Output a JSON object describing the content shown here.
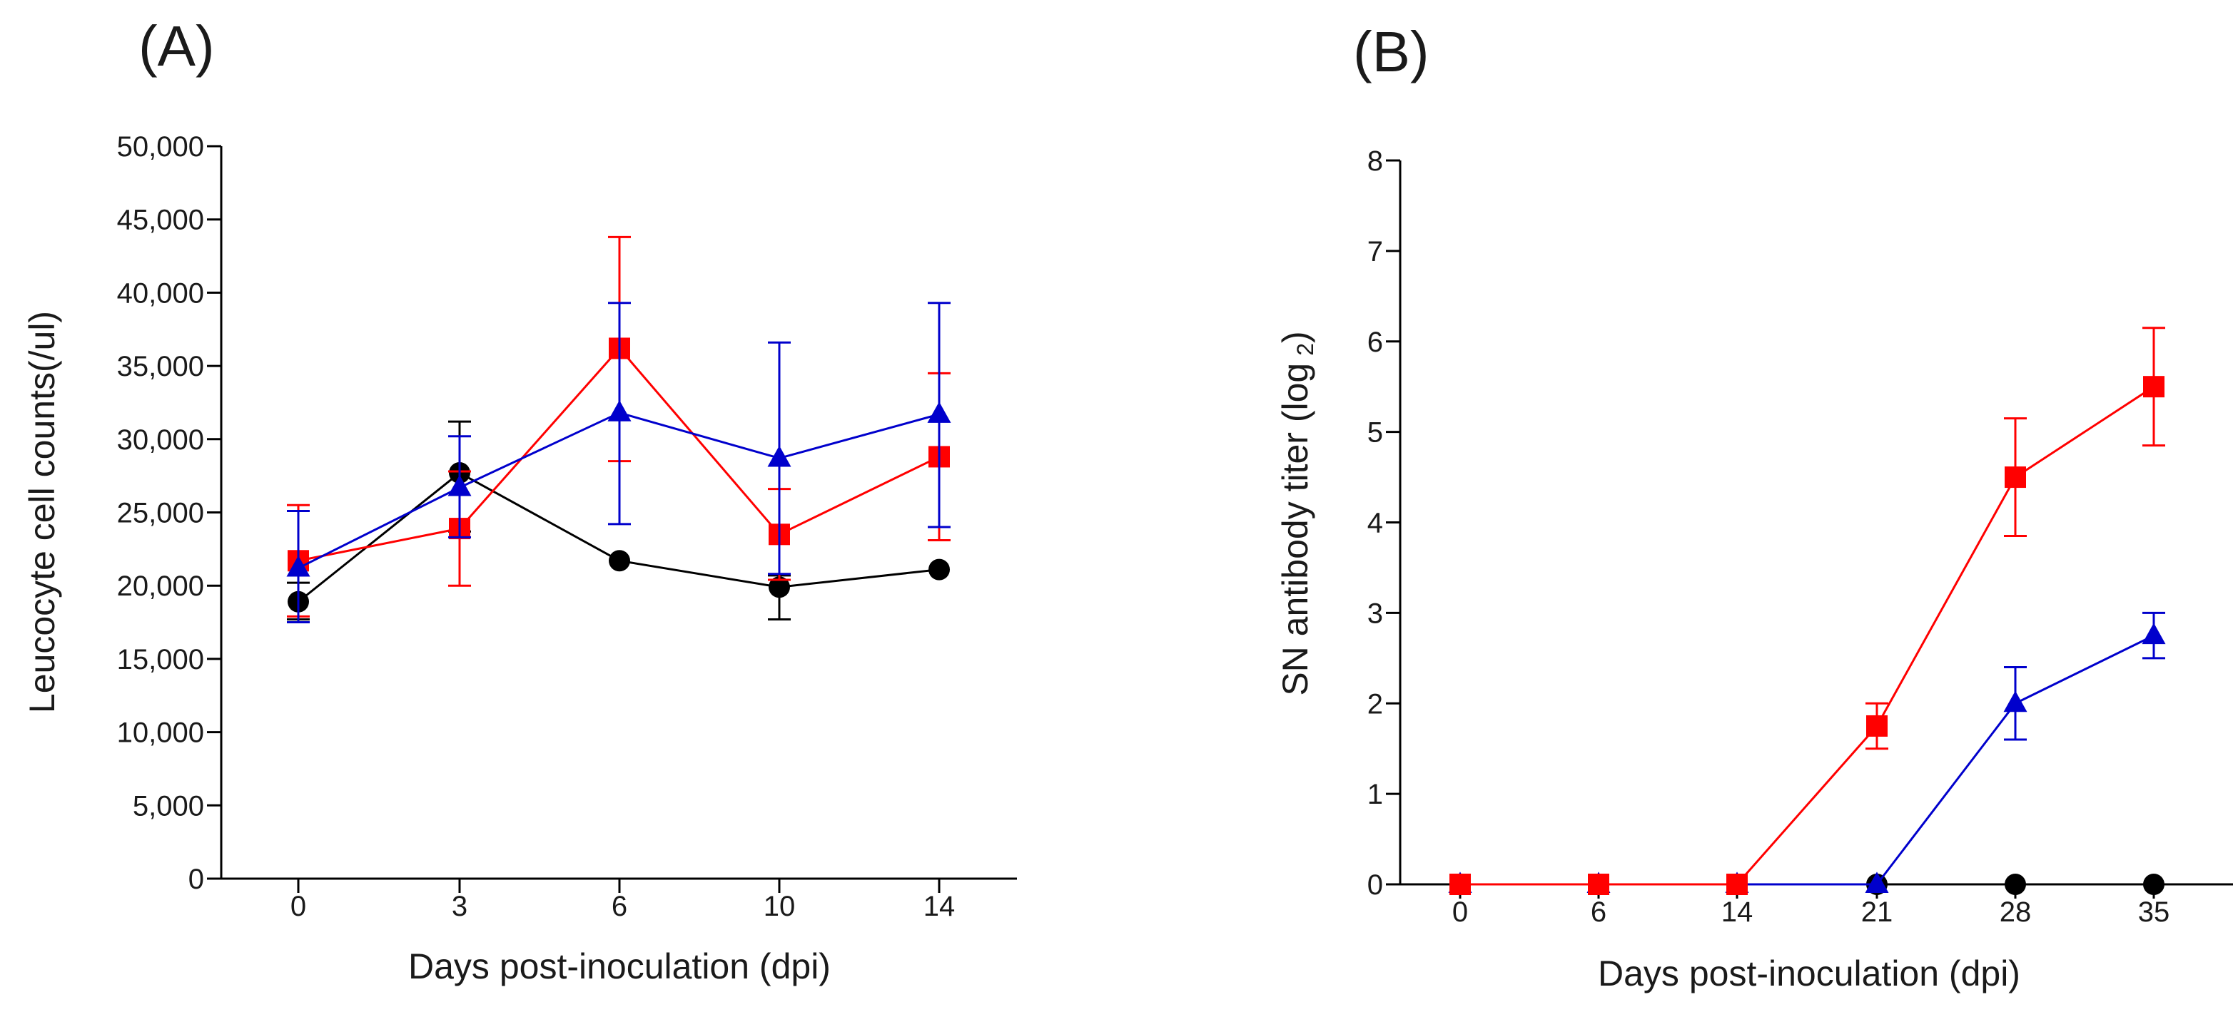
{
  "chart_data": [
    {
      "type": "line",
      "panel_label": "(A)",
      "xlabel": "Days post-inoculation (dpi)",
      "ylabel": "Leucocyte cell counts(/ul)",
      "categories": [
        "0",
        "3",
        "6",
        "10",
        "14"
      ],
      "ylim": [
        0,
        50000
      ],
      "yticks": [
        0,
        5000,
        10000,
        15000,
        20000,
        25000,
        30000,
        35000,
        40000,
        45000,
        50000
      ],
      "ytick_labels": [
        "0",
        "5,000",
        "10,000",
        "15,000",
        "20,000",
        "25,000",
        "30,000",
        "35,000",
        "40,000",
        "45,000",
        "50,000"
      ],
      "series": [
        {
          "name": "black circles",
          "color": "#000000",
          "marker": "circle",
          "values": [
            18900,
            27700,
            21700,
            19900,
            21100
          ],
          "err_upper": [
            20200,
            31200,
            21700,
            20700,
            21100
          ],
          "err_lower": [
            17700,
            23700,
            21700,
            17700,
            21100
          ]
        },
        {
          "name": "red squares",
          "color": "#ff0000",
          "marker": "square",
          "values": [
            21700,
            23900,
            36200,
            23500,
            28800
          ],
          "err_upper": [
            25500,
            27800,
            43800,
            26600,
            34500
          ],
          "err_lower": [
            17900,
            20000,
            28500,
            20400,
            23100
          ]
        },
        {
          "name": "blue triangles",
          "color": "#0000cc",
          "marker": "triangle",
          "values": [
            21200,
            26700,
            31800,
            28700,
            31700
          ],
          "err_upper": [
            25100,
            30200,
            39300,
            36600,
            39300
          ],
          "err_lower": [
            17500,
            23300,
            24200,
            20800,
            24000
          ]
        }
      ]
    },
    {
      "type": "line",
      "panel_label": "(B)",
      "xlabel": "Days post-inoculation (dpi)",
      "ylabel": "SN antibody titer (log",
      "ylabel_sub": "2",
      "ylabel_close": ")",
      "categories": [
        "0",
        "6",
        "14",
        "21",
        "28",
        "35"
      ],
      "ylim": [
        0,
        8
      ],
      "yticks": [
        0,
        1,
        2,
        3,
        4,
        5,
        6,
        7,
        8
      ],
      "ytick_labels": [
        "0",
        "1",
        "2",
        "3",
        "4",
        "5",
        "6",
        "7",
        "8"
      ],
      "series": [
        {
          "name": "black circles",
          "color": "#000000",
          "marker": "circle",
          "values": [
            0,
            0,
            0,
            0,
            0,
            0
          ],
          "err_upper": [
            0,
            0,
            0,
            0,
            0,
            0
          ],
          "err_lower": [
            0,
            0,
            0,
            0,
            0,
            0
          ]
        },
        {
          "name": "blue triangles",
          "color": "#0000cc",
          "marker": "triangle",
          "values": [
            0,
            0,
            0,
            0,
            2.0,
            2.75
          ],
          "err_upper": [
            0,
            0,
            0,
            0,
            2.4,
            3.0
          ],
          "err_lower": [
            0,
            0,
            0,
            0,
            1.6,
            2.5
          ]
        },
        {
          "name": "red squares",
          "color": "#ff0000",
          "marker": "square",
          "values": [
            0,
            0,
            0,
            1.75,
            4.5,
            5.5
          ],
          "err_upper": [
            0,
            0,
            0,
            2.0,
            5.15,
            6.15
          ],
          "err_lower": [
            0,
            0,
            0,
            1.5,
            3.85,
            4.85
          ]
        }
      ]
    }
  ]
}
